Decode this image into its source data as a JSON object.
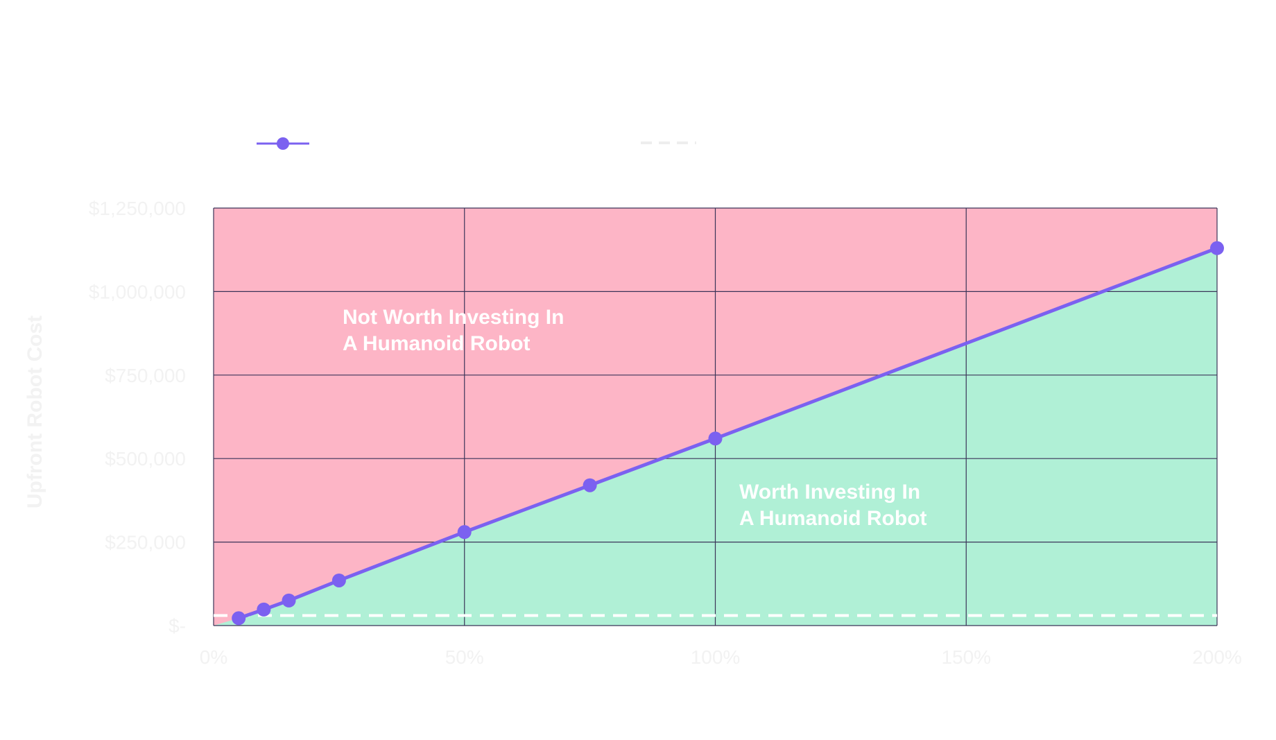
{
  "chart_data": {
    "type": "line",
    "ylabel": "Upfront Robot Cost",
    "xlabel": "",
    "xlim": [
      0,
      2
    ],
    "ylim": [
      0,
      1250000
    ],
    "x_ticks": [
      {
        "value": 0,
        "label": "0%"
      },
      {
        "value": 0.5,
        "label": "50%"
      },
      {
        "value": 1,
        "label": "100%"
      },
      {
        "value": 1.5,
        "label": "150%"
      },
      {
        "value": 2,
        "label": "200%"
      }
    ],
    "y_ticks": [
      {
        "value": 0,
        "label": "$-"
      },
      {
        "value": 250000,
        "label": "$250,000"
      },
      {
        "value": 500000,
        "label": "$500,000"
      },
      {
        "value": 750000,
        "label": "$750,000"
      },
      {
        "value": 1000000,
        "label": "$1,000,000"
      },
      {
        "value": 1250000,
        "label": "$1,250,000"
      }
    ],
    "grid": true,
    "legend_position": "top-left",
    "series": [
      {
        "type": "line",
        "color": "#7b61f0",
        "x": [
          0.05,
          0.1,
          0.15,
          0.25,
          0.5,
          0.75,
          1.0,
          2.0
        ],
        "y": [
          22000,
          48000,
          75000,
          135000,
          280000,
          420000,
          560000,
          1130000
        ]
      },
      {
        "type": "reference-line",
        "style": "dashed",
        "color": "#ffffff",
        "y": 30000
      }
    ],
    "regions": {
      "above_color": "#fdb5c6",
      "below_color": "#b0f0d6",
      "above_label_line1": "Not Worth Investing In",
      "above_label_line2": "A Humanoid Robot",
      "below_label_line1": "Worth Investing In",
      "below_label_line2": "A Humanoid Robot"
    },
    "colors": {
      "grid": "#3a3458",
      "tick_text": "#f2f2f2",
      "axis_title": "#f2f2f2",
      "region_text": "#ffffff",
      "legend_dash": "#eeeeee"
    }
  }
}
